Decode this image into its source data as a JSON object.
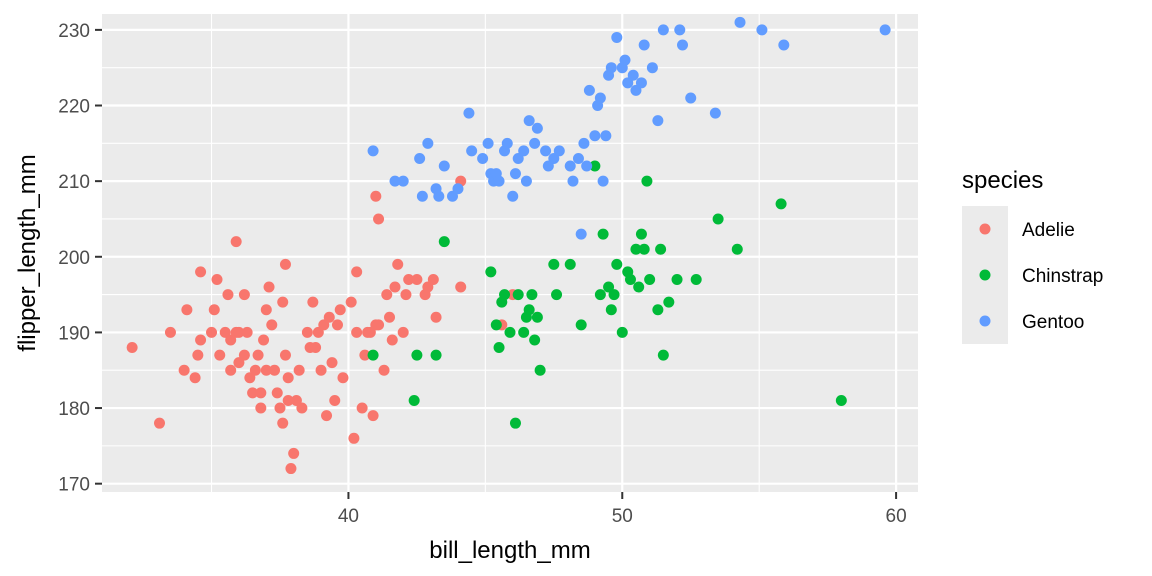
{
  "chart_data": {
    "type": "scatter",
    "xlabel": "bill_length_mm",
    "ylabel": "flipper_length_mm",
    "xlim": [
      31.0,
      60.8
    ],
    "ylim": [
      168.9,
      232.1
    ],
    "x_ticks": [
      40,
      50,
      60
    ],
    "y_ticks": [
      170,
      180,
      190,
      200,
      210,
      220,
      230
    ],
    "grid": true,
    "legend": {
      "title": "species",
      "position": "right"
    },
    "series": [
      {
        "name": "Adelie",
        "color": "#F8766D",
        "points": [
          [
            32.1,
            188
          ],
          [
            33.1,
            178
          ],
          [
            33.5,
            190
          ],
          [
            34.0,
            185
          ],
          [
            34.1,
            193
          ],
          [
            34.4,
            184
          ],
          [
            34.5,
            187
          ],
          [
            34.6,
            189
          ],
          [
            34.6,
            198
          ],
          [
            35.0,
            190
          ],
          [
            35.1,
            193
          ],
          [
            35.2,
            197
          ],
          [
            35.3,
            187
          ],
          [
            35.5,
            190
          ],
          [
            35.6,
            195
          ],
          [
            35.7,
            185
          ],
          [
            35.7,
            189
          ],
          [
            35.9,
            190
          ],
          [
            35.9,
            202
          ],
          [
            36.0,
            186
          ],
          [
            36.0,
            190
          ],
          [
            36.2,
            187
          ],
          [
            36.2,
            195
          ],
          [
            36.3,
            190
          ],
          [
            36.4,
            184
          ],
          [
            36.5,
            182
          ],
          [
            36.6,
            185
          ],
          [
            36.7,
            187
          ],
          [
            36.8,
            180
          ],
          [
            36.8,
            182
          ],
          [
            36.9,
            189
          ],
          [
            37.0,
            185
          ],
          [
            37.0,
            193
          ],
          [
            37.1,
            196
          ],
          [
            37.2,
            191
          ],
          [
            37.3,
            185
          ],
          [
            37.4,
            182
          ],
          [
            37.5,
            180
          ],
          [
            37.6,
            178
          ],
          [
            37.6,
            194
          ],
          [
            37.7,
            187
          ],
          [
            37.7,
            199
          ],
          [
            37.8,
            181
          ],
          [
            37.8,
            184
          ],
          [
            37.9,
            172
          ],
          [
            38.0,
            174
          ],
          [
            38.1,
            181
          ],
          [
            38.2,
            185
          ],
          [
            38.3,
            180
          ],
          [
            38.5,
            190
          ],
          [
            38.6,
            188
          ],
          [
            38.7,
            194
          ],
          [
            38.8,
            188
          ],
          [
            38.9,
            190
          ],
          [
            39.0,
            185
          ],
          [
            39.1,
            191
          ],
          [
            39.2,
            179
          ],
          [
            39.3,
            192
          ],
          [
            39.4,
            186
          ],
          [
            39.5,
            181
          ],
          [
            39.6,
            191
          ],
          [
            39.7,
            193
          ],
          [
            39.8,
            184
          ],
          [
            40.1,
            194
          ],
          [
            40.2,
            176
          ],
          [
            40.3,
            190
          ],
          [
            40.3,
            198
          ],
          [
            40.5,
            180
          ],
          [
            40.6,
            187
          ],
          [
            40.7,
            190
          ],
          [
            40.8,
            190
          ],
          [
            40.9,
            179
          ],
          [
            41.0,
            191
          ],
          [
            41.0,
            208
          ],
          [
            41.1,
            191
          ],
          [
            41.1,
            205
          ],
          [
            41.3,
            185
          ],
          [
            41.4,
            195
          ],
          [
            41.5,
            192
          ],
          [
            41.6,
            189
          ],
          [
            41.7,
            196
          ],
          [
            41.8,
            199
          ],
          [
            42.0,
            190
          ],
          [
            42.1,
            195
          ],
          [
            42.2,
            197
          ],
          [
            42.5,
            197
          ],
          [
            42.8,
            195
          ],
          [
            42.9,
            196
          ],
          [
            43.1,
            197
          ],
          [
            43.2,
            192
          ],
          [
            44.1,
            210
          ],
          [
            44.1,
            196
          ],
          [
            45.6,
            191
          ],
          [
            46.0,
            195
          ]
        ]
      },
      {
        "name": "Chinstrap",
        "color": "#00BA38",
        "points": [
          [
            40.9,
            187
          ],
          [
            42.4,
            181
          ],
          [
            42.5,
            187
          ],
          [
            43.2,
            187
          ],
          [
            43.5,
            202
          ],
          [
            45.2,
            198
          ],
          [
            45.4,
            191
          ],
          [
            45.5,
            188
          ],
          [
            45.6,
            194
          ],
          [
            45.7,
            195
          ],
          [
            45.9,
            190
          ],
          [
            46.1,
            178
          ],
          [
            46.2,
            195
          ],
          [
            46.4,
            190
          ],
          [
            46.5,
            192
          ],
          [
            46.6,
            193
          ],
          [
            46.7,
            195
          ],
          [
            46.8,
            189
          ],
          [
            46.9,
            192
          ],
          [
            47.0,
            185
          ],
          [
            47.5,
            199
          ],
          [
            47.6,
            195
          ],
          [
            48.1,
            199
          ],
          [
            48.5,
            191
          ],
          [
            49.0,
            212
          ],
          [
            49.2,
            195
          ],
          [
            49.3,
            203
          ],
          [
            49.5,
            196
          ],
          [
            49.6,
            193
          ],
          [
            49.7,
            195
          ],
          [
            49.8,
            199
          ],
          [
            50.0,
            190
          ],
          [
            50.2,
            198
          ],
          [
            50.3,
            197
          ],
          [
            50.5,
            201
          ],
          [
            50.6,
            196
          ],
          [
            50.7,
            203
          ],
          [
            50.8,
            201
          ],
          [
            50.9,
            210
          ],
          [
            51.0,
            197
          ],
          [
            51.3,
            193
          ],
          [
            51.4,
            201
          ],
          [
            51.5,
            187
          ],
          [
            51.7,
            194
          ],
          [
            52.0,
            197
          ],
          [
            52.7,
            197
          ],
          [
            53.5,
            205
          ],
          [
            54.2,
            201
          ],
          [
            55.8,
            207
          ],
          [
            58.0,
            181
          ]
        ]
      },
      {
        "name": "Gentoo",
        "color": "#619CFF",
        "points": [
          [
            40.9,
            214
          ],
          [
            41.7,
            210
          ],
          [
            42.0,
            210
          ],
          [
            42.6,
            213
          ],
          [
            42.7,
            208
          ],
          [
            42.9,
            215
          ],
          [
            43.2,
            209
          ],
          [
            43.3,
            208
          ],
          [
            43.5,
            212
          ],
          [
            43.8,
            208
          ],
          [
            44.0,
            209
          ],
          [
            44.4,
            219
          ],
          [
            44.5,
            214
          ],
          [
            44.9,
            213
          ],
          [
            45.1,
            215
          ],
          [
            45.2,
            211
          ],
          [
            45.3,
            210
          ],
          [
            45.4,
            211
          ],
          [
            45.5,
            210
          ],
          [
            45.7,
            214
          ],
          [
            45.8,
            215
          ],
          [
            46.0,
            208
          ],
          [
            46.1,
            211
          ],
          [
            46.2,
            213
          ],
          [
            46.4,
            214
          ],
          [
            46.5,
            210
          ],
          [
            46.6,
            218
          ],
          [
            46.8,
            215
          ],
          [
            46.9,
            217
          ],
          [
            47.2,
            214
          ],
          [
            47.3,
            212
          ],
          [
            47.5,
            213
          ],
          [
            47.7,
            214
          ],
          [
            48.1,
            212
          ],
          [
            48.2,
            210
          ],
          [
            48.4,
            213
          ],
          [
            48.5,
            203
          ],
          [
            48.6,
            215
          ],
          [
            48.7,
            212
          ],
          [
            48.8,
            222
          ],
          [
            49.0,
            216
          ],
          [
            49.1,
            220
          ],
          [
            49.2,
            221
          ],
          [
            49.3,
            210
          ],
          [
            49.4,
            216
          ],
          [
            49.5,
            224
          ],
          [
            49.6,
            225
          ],
          [
            49.8,
            229
          ],
          [
            50.0,
            225
          ],
          [
            50.1,
            226
          ],
          [
            50.2,
            223
          ],
          [
            50.4,
            224
          ],
          [
            50.5,
            222
          ],
          [
            50.7,
            223
          ],
          [
            50.8,
            228
          ],
          [
            51.1,
            225
          ],
          [
            51.3,
            218
          ],
          [
            51.5,
            230
          ],
          [
            52.1,
            230
          ],
          [
            52.2,
            228
          ],
          [
            52.5,
            221
          ],
          [
            53.4,
            219
          ],
          [
            54.3,
            231
          ],
          [
            55.1,
            230
          ],
          [
            55.9,
            228
          ],
          [
            59.6,
            230
          ]
        ]
      }
    ]
  }
}
